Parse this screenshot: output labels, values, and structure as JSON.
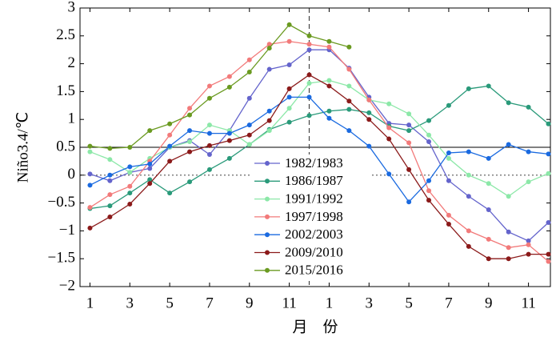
{
  "chart_data": {
    "type": "line",
    "x_label": "月　份",
    "y_label": "Niño3.4/℃",
    "x": [
      1,
      2,
      3,
      4,
      5,
      6,
      7,
      8,
      9,
      10,
      11,
      12,
      13,
      14,
      15,
      16,
      17,
      18,
      19,
      20,
      21,
      22,
      23,
      24
    ],
    "xlim": [
      0.5,
      24.1
    ],
    "xticks": [
      1,
      3,
      5,
      7,
      9,
      11,
      {
        "value": 13,
        "label": "1"
      },
      {
        "value": 15,
        "label": "3"
      },
      {
        "value": 17,
        "label": "5"
      },
      {
        "value": 19,
        "label": "7"
      },
      {
        "value": 21,
        "label": "9"
      },
      {
        "value": 23,
        "label": "11"
      }
    ],
    "ylim": [
      -2,
      3
    ],
    "yticks": [
      {
        "value": -2,
        "label": "−2"
      },
      {
        "value": -1.5,
        "label": "−1.5"
      },
      {
        "value": -1,
        "label": "−1"
      },
      {
        "value": -0.5,
        "label": "−0.5"
      },
      0,
      0.5,
      1,
      1.5,
      2,
      2.5,
      3
    ],
    "threshold_line": 0.5,
    "zero_line": 0,
    "vertical_line": 12,
    "series": [
      {
        "name": "1982/1983",
        "color": "#6464cc",
        "values": [
          0.02,
          -0.1,
          0.05,
          0.12,
          0.5,
          0.62,
          0.37,
          0.8,
          1.38,
          1.9,
          1.98,
          2.25,
          2.25,
          1.92,
          1.4,
          0.93,
          0.9,
          0.6,
          -0.1,
          -0.38,
          -0.62,
          -1.02,
          -1.18,
          -0.85
        ]
      },
      {
        "name": "1986/1987",
        "color": "#2a9a7a",
        "values": [
          -0.6,
          -0.55,
          -0.32,
          -0.08,
          -0.32,
          -0.12,
          0.1,
          0.3,
          0.55,
          0.82,
          0.95,
          1.07,
          1.15,
          1.18,
          1.12,
          0.88,
          0.8,
          0.98,
          1.25,
          1.55,
          1.6,
          1.3,
          1.22,
          0.92
        ]
      },
      {
        "name": "1991/1992",
        "color": "#8ce8a8",
        "values": [
          0.42,
          0.28,
          0.05,
          0.3,
          0.5,
          0.6,
          0.9,
          0.8,
          0.55,
          0.8,
          1.2,
          1.65,
          1.7,
          1.6,
          1.35,
          1.28,
          1.1,
          0.72,
          0.3,
          0.0,
          -0.15,
          -0.38,
          -0.12,
          0.03
        ]
      },
      {
        "name": "1997/1998",
        "color": "#f27a7a",
        "values": [
          -0.58,
          -0.35,
          -0.2,
          0.25,
          0.72,
          1.2,
          1.6,
          1.77,
          2.07,
          2.35,
          2.4,
          2.35,
          2.3,
          1.9,
          1.35,
          0.85,
          0.58,
          -0.28,
          -0.72,
          -1.0,
          -1.15,
          -1.3,
          -1.25,
          -1.55
        ]
      },
      {
        "name": "2002/2003",
        "color": "#1a6ae0",
        "values": [
          -0.18,
          0.0,
          0.15,
          0.2,
          0.52,
          0.8,
          0.75,
          0.75,
          0.9,
          1.15,
          1.4,
          1.4,
          1.02,
          0.8,
          0.52,
          0.02,
          -0.48,
          -0.1,
          0.4,
          0.42,
          0.3,
          0.55,
          0.42,
          0.38
        ]
      },
      {
        "name": "2009/2010",
        "color": "#8b1a1a",
        "values": [
          -0.95,
          -0.75,
          -0.52,
          -0.15,
          0.25,
          0.42,
          0.53,
          0.62,
          0.72,
          0.98,
          1.55,
          1.8,
          1.6,
          1.33,
          1.0,
          0.65,
          0.1,
          -0.45,
          -0.88,
          -1.28,
          -1.5,
          -1.5,
          -1.42,
          -1.42
        ]
      },
      {
        "name": "2015/2016",
        "color": "#6a9a20",
        "values": [
          0.52,
          0.48,
          0.5,
          0.8,
          0.92,
          1.08,
          1.38,
          1.58,
          1.85,
          2.28,
          2.7,
          2.5,
          2.4,
          2.3,
          null,
          null,
          null,
          null,
          null,
          null,
          null,
          null,
          null,
          null
        ]
      }
    ]
  }
}
